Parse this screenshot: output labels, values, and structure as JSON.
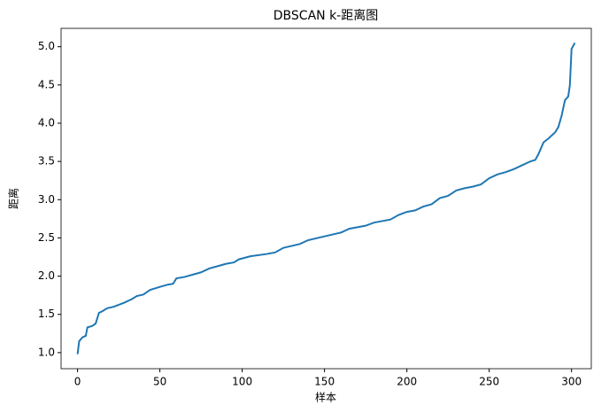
{
  "chart_data": {
    "type": "line",
    "title": "DBSCAN k-距离图",
    "xlabel": "样本",
    "ylabel": "距离",
    "x": [
      0,
      1,
      3,
      5,
      6,
      9,
      11,
      13,
      15,
      18,
      22,
      28,
      33,
      36,
      40,
      44,
      50,
      55,
      58,
      60,
      65,
      70,
      75,
      80,
      85,
      90,
      95,
      98,
      105,
      115,
      120,
      125,
      135,
      140,
      150,
      160,
      165,
      175,
      180,
      190,
      195,
      200,
      205,
      210,
      215,
      220,
      225,
      230,
      235,
      240,
      245,
      250,
      255,
      260,
      265,
      270,
      275,
      278,
      280,
      283,
      286,
      290,
      292,
      294,
      296,
      298,
      299,
      300,
      302
    ],
    "series": [
      {
        "name": "距离",
        "color": "#1f77b4",
        "values": [
          0.98,
          1.15,
          1.2,
          1.22,
          1.33,
          1.35,
          1.38,
          1.52,
          1.54,
          1.58,
          1.6,
          1.65,
          1.7,
          1.74,
          1.76,
          1.82,
          1.86,
          1.89,
          1.9,
          1.97,
          1.99,
          2.02,
          2.05,
          2.1,
          2.13,
          2.16,
          2.18,
          2.22,
          2.26,
          2.29,
          2.31,
          2.37,
          2.42,
          2.47,
          2.52,
          2.57,
          2.62,
          2.66,
          2.7,
          2.74,
          2.8,
          2.84,
          2.86,
          2.91,
          2.94,
          3.02,
          3.05,
          3.12,
          3.15,
          3.17,
          3.2,
          3.28,
          3.33,
          3.36,
          3.4,
          3.45,
          3.5,
          3.52,
          3.6,
          3.75,
          3.8,
          3.88,
          3.95,
          4.1,
          4.3,
          4.35,
          4.5,
          4.97,
          5.05
        ]
      }
    ],
    "xlim": [
      -10,
      312
    ],
    "ylim": [
      0.79,
      5.24
    ],
    "xticks": [
      0,
      50,
      100,
      150,
      200,
      250,
      300
    ],
    "yticks": [
      {
        "value": 1.0,
        "label": "1.0"
      },
      1.5,
      {
        "value": 2.0,
        "label": "2.0"
      },
      2.5,
      {
        "value": 3.0,
        "label": "3.0"
      },
      3.5,
      {
        "value": 4.0,
        "label": "4.0"
      },
      4.5,
      {
        "value": 5.0,
        "label": "5.0"
      }
    ]
  }
}
